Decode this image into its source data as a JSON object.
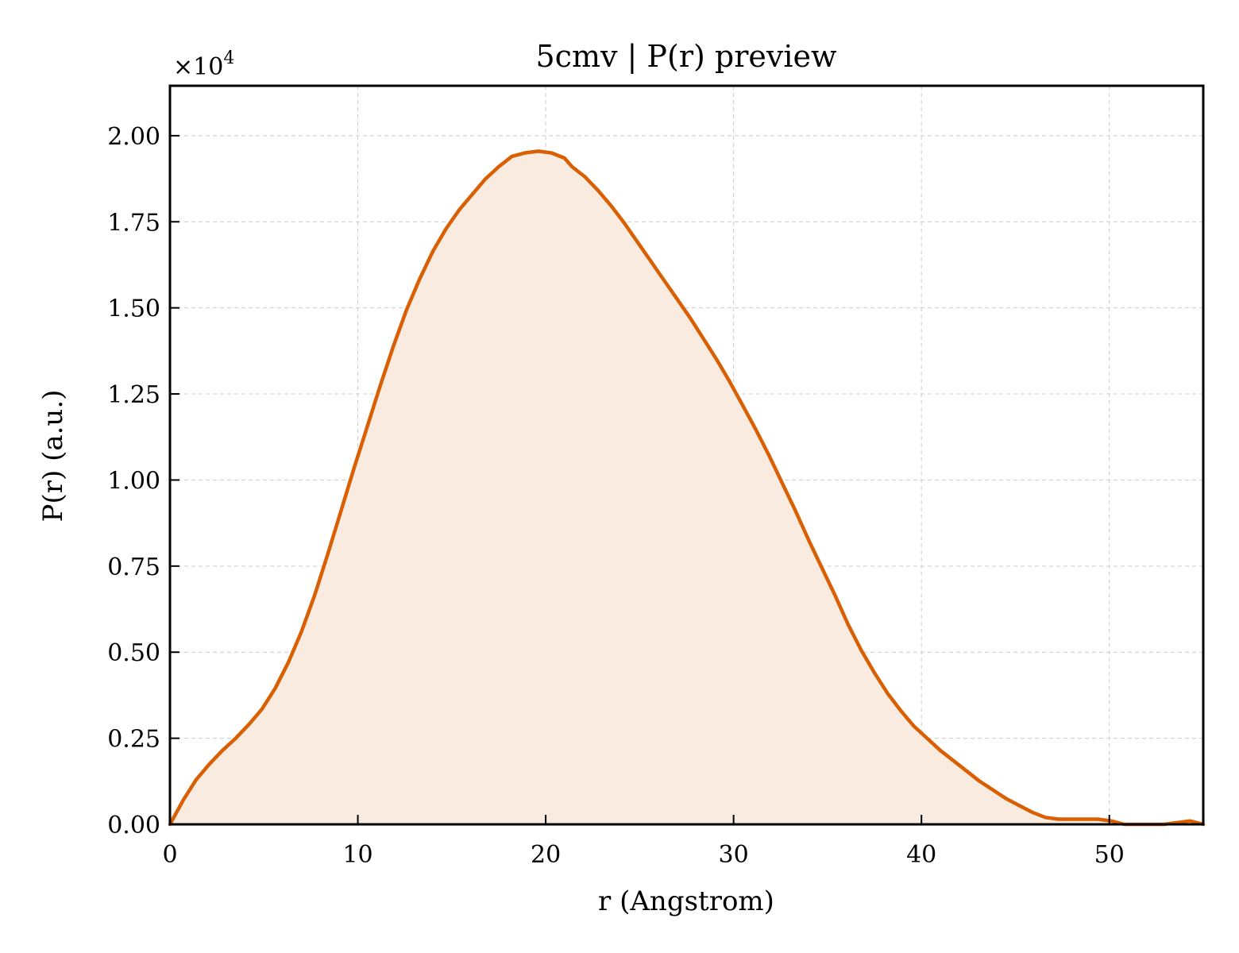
{
  "chart_data": {
    "type": "area",
    "title": "5cmv | P(r) preview",
    "xlabel": "r (Angstrom)",
    "ylabel": "P(r) (a.u.)",
    "y_scale_label_base": "×10",
    "y_scale_label_exp": "4",
    "y_scale_factor": 10000,
    "xlim": [
      0,
      55
    ],
    "ylim": [
      0,
      21450
    ],
    "x_ticks": [
      0,
      10,
      20,
      30,
      40,
      50
    ],
    "x_tick_labels": [
      "0",
      "10",
      "20",
      "30",
      "40",
      "50"
    ],
    "y_ticks": [
      0,
      2500,
      5000,
      7500,
      10000,
      12500,
      15000,
      17500,
      20000
    ],
    "y_tick_labels": [
      "0.00",
      "0.25",
      "0.50",
      "0.75",
      "1.00",
      "1.25",
      "1.50",
      "1.75",
      "2.00"
    ],
    "grid": true,
    "colors": {
      "line": "#d95f02",
      "fill": "#f9ebe0"
    },
    "series": [
      {
        "x": [
          0,
          0.7,
          1.4,
          2.1,
          2.8,
          3.5,
          4.2,
          4.9,
          5.6,
          6.3,
          7.0,
          7.7,
          8.4,
          9.1,
          9.8,
          10.5,
          11.2,
          11.9,
          12.6,
          13.3,
          14.0,
          14.7,
          15.4,
          16.1,
          16.8,
          17.5,
          18.2,
          18.9,
          19.6,
          20.3,
          21.0,
          21.4,
          22.1,
          22.8,
          23.5,
          24.2,
          24.9,
          25.6,
          26.3,
          27.0,
          27.7,
          28.4,
          29.1,
          29.8,
          30.5,
          31.2,
          31.9,
          32.6,
          33.3,
          34.0,
          34.7,
          35.4,
          36.1,
          36.8,
          37.5,
          38.2,
          38.9,
          39.6,
          40.3,
          41.0,
          41.7,
          42.4,
          43.1,
          43.8,
          44.5,
          45.2,
          45.9,
          46.6,
          47.3,
          48.0,
          48.7,
          49.4,
          50.1,
          50.8,
          51.5,
          52.2,
          52.9,
          53.6,
          54.3,
          55.0
        ],
        "y": [
          0,
          700,
          1300,
          1750,
          2150,
          2500,
          2900,
          3350,
          3950,
          4700,
          5600,
          6650,
          7850,
          9100,
          10350,
          11550,
          12750,
          13900,
          14950,
          15850,
          16650,
          17300,
          17850,
          18300,
          18750,
          19100,
          19400,
          19500,
          19550,
          19500,
          19350,
          19100,
          18800,
          18400,
          17950,
          17450,
          16900,
          16350,
          15800,
          15250,
          14700,
          14100,
          13500,
          12850,
          12150,
          11450,
          10700,
          9900,
          9100,
          8250,
          7450,
          6650,
          5800,
          5050,
          4400,
          3800,
          3300,
          2850,
          2500,
          2150,
          1850,
          1550,
          1250,
          1000,
          750,
          550,
          350,
          200,
          150,
          150,
          150,
          150,
          100,
          0,
          0,
          0,
          0,
          50,
          100,
          0
        ]
      }
    ]
  }
}
